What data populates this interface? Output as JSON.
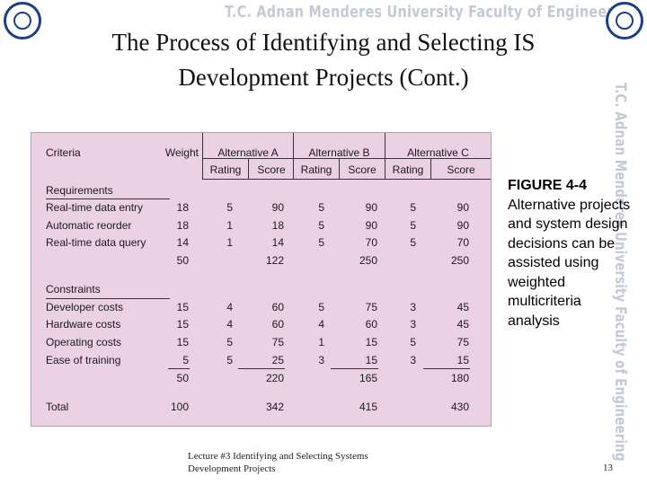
{
  "header": {
    "banner": "T.C.   Adnan Menderes University   Faculty of Engineering",
    "side_banner": "T.C.   Adnan Menderes University   Faculty of Engineering"
  },
  "slide": {
    "title_line1": "The Process of Identifying and Selecting IS",
    "title_line2": "Development Projects (Cont.)"
  },
  "figure_table": {
    "headers": {
      "criteria": "Criteria",
      "weight": "Weight",
      "alternatives": [
        "Alternative A",
        "Alternative B",
        "Alternative C"
      ],
      "rating": "Rating",
      "score": "Score"
    },
    "requirements": {
      "label": "Requirements",
      "rows": [
        {
          "name": "Real-time data entry",
          "weight": "18",
          "a_rating": "5",
          "a_score": "90",
          "b_rating": "5",
          "b_score": "90",
          "c_rating": "5",
          "c_score": "90"
        },
        {
          "name": "Automatic reorder",
          "weight": "18",
          "a_rating": "1",
          "a_score": "18",
          "b_rating": "5",
          "b_score": "90",
          "c_rating": "5",
          "c_score": "90"
        },
        {
          "name": "Real-time data query",
          "weight": "14",
          "a_rating": "1",
          "a_score": "14",
          "b_rating": "5",
          "b_score": "70",
          "c_rating": "5",
          "c_score": "70"
        }
      ],
      "subtotal": {
        "weight": "50",
        "a_score": "122",
        "b_score": "250",
        "c_score": "250"
      }
    },
    "constraints": {
      "label": "Constraints",
      "rows": [
        {
          "name": "Developer costs",
          "weight": "15",
          "a_rating": "4",
          "a_score": "60",
          "b_rating": "5",
          "b_score": "75",
          "c_rating": "3",
          "c_score": "45"
        },
        {
          "name": "Hardware costs",
          "weight": "15",
          "a_rating": "4",
          "a_score": "60",
          "b_rating": "4",
          "b_score": "60",
          "c_rating": "3",
          "c_score": "45"
        },
        {
          "name": "Operating costs",
          "weight": "15",
          "a_rating": "5",
          "a_score": "75",
          "b_rating": "1",
          "b_score": "15",
          "c_rating": "5",
          "c_score": "75"
        },
        {
          "name": "Ease of training",
          "weight": "5",
          "a_rating": "5",
          "a_score": "25",
          "b_rating": "3",
          "b_score": "15",
          "c_rating": "3",
          "c_score": "15"
        }
      ],
      "subtotal": {
        "weight": "50",
        "a_score": "220",
        "b_score": "165",
        "c_score": "180"
      }
    },
    "total": {
      "label": "Total",
      "weight": "100",
      "a_score": "342",
      "b_score": "415",
      "c_score": "430"
    }
  },
  "caption": {
    "label": "FIGURE 4-4",
    "text": "Alternative projects and system design decisions can be assisted using weighted multicriteria analysis"
  },
  "footer": {
    "line1": "Lecture #3 Identifying and Selecting Systems",
    "line2": "Development Projects",
    "page_number": "13"
  },
  "colors": {
    "figure_background": "#ebd1e4",
    "logo_blue": "#1d3f8a",
    "banner_text": "#c4c9d6"
  }
}
